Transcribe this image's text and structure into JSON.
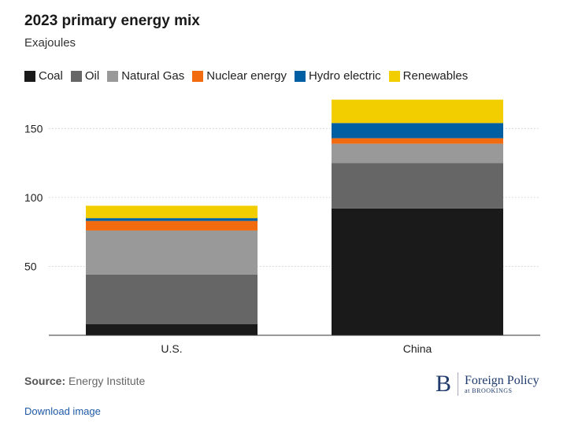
{
  "header": {
    "title": "2023 primary energy mix",
    "subtitle": "Exajoules"
  },
  "footer": {
    "source_label": "Source:",
    "source_text": "Energy Institute",
    "download_label": "Download image",
    "logo_letter": "B",
    "logo_name": "Foreign Policy",
    "logo_sub": "at BROOKINGS"
  },
  "chart_data": {
    "type": "bar",
    "stacked": true,
    "title": "2023 primary energy mix",
    "subtitle": "Exajoules",
    "categories": [
      "U.S.",
      "China"
    ],
    "series": [
      {
        "name": "Coal",
        "color": "#1a1a1a",
        "values": [
          8,
          92
        ]
      },
      {
        "name": "Oil",
        "color": "#666666",
        "values": [
          36,
          33
        ]
      },
      {
        "name": "Natural Gas",
        "color": "#999999",
        "values": [
          32,
          14
        ]
      },
      {
        "name": "Nuclear energy",
        "color": "#f26b0f",
        "values": [
          7,
          4
        ]
      },
      {
        "name": "Hydro electric",
        "color": "#005fa3",
        "values": [
          2,
          11
        ]
      },
      {
        "name": "Renewables",
        "color": "#f2cd00",
        "values": [
          9,
          17
        ]
      }
    ],
    "yticks": [
      50,
      100,
      150
    ],
    "ylim": [
      0,
      171
    ],
    "grid": true,
    "legend_position": "top"
  }
}
